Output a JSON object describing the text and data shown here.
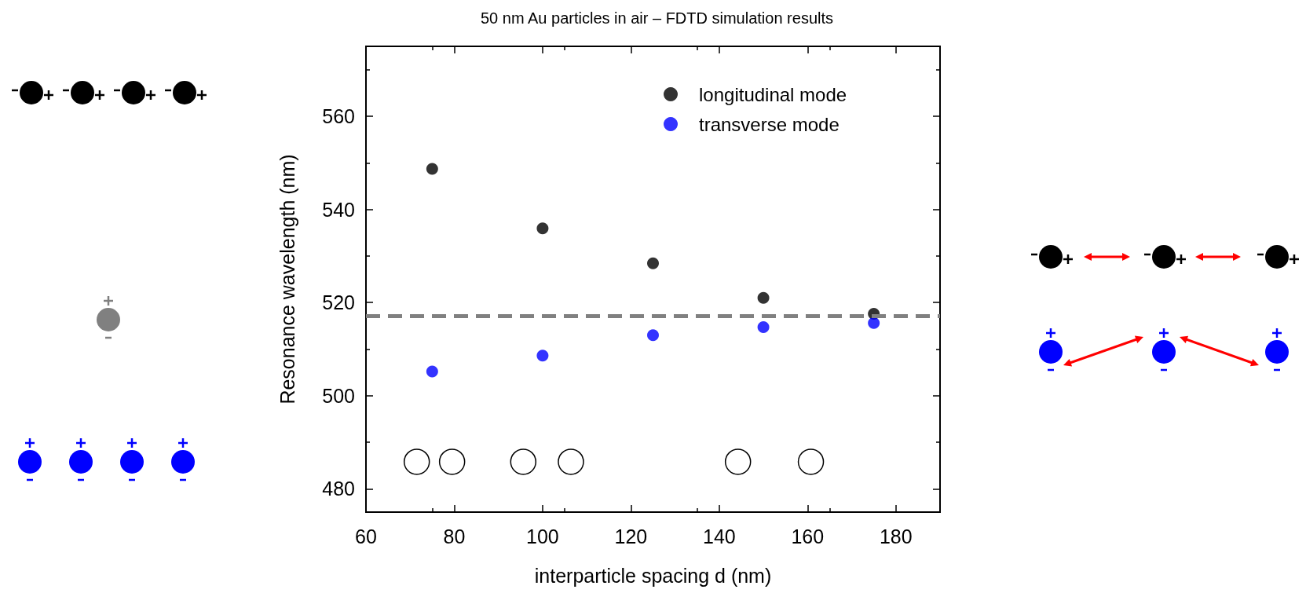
{
  "chart_data": {
    "type": "scatter",
    "title": "50 nm Au particles in air – FDTD simulation results",
    "xlabel": "interparticle spacing d (nm)",
    "ylabel": "Resonance wavelength (nm)",
    "x": [
      75,
      100,
      125,
      150,
      175
    ],
    "series": [
      {
        "name": "longitudinal mode",
        "color": "#000000",
        "values": [
          548.7,
          535.9,
          528.4,
          521.0,
          517.6
        ]
      },
      {
        "name": "transverse mode",
        "color": "#0000ff",
        "values": [
          505.2,
          508.6,
          513.0,
          514.7,
          515.6
        ]
      }
    ],
    "xlim": [
      60,
      190
    ],
    "xticks": [
      60,
      80,
      100,
      120,
      140,
      160,
      180
    ],
    "ylim": [
      475,
      575
    ],
    "yticks": [
      480,
      500,
      520,
      540,
      560
    ],
    "ref_lines": [
      {
        "axis": "y",
        "value": 517.1,
        "color": "#808080",
        "line_style": "dashed"
      }
    ],
    "legend": "top right",
    "marker": "circle",
    "grid": false
  }
}
